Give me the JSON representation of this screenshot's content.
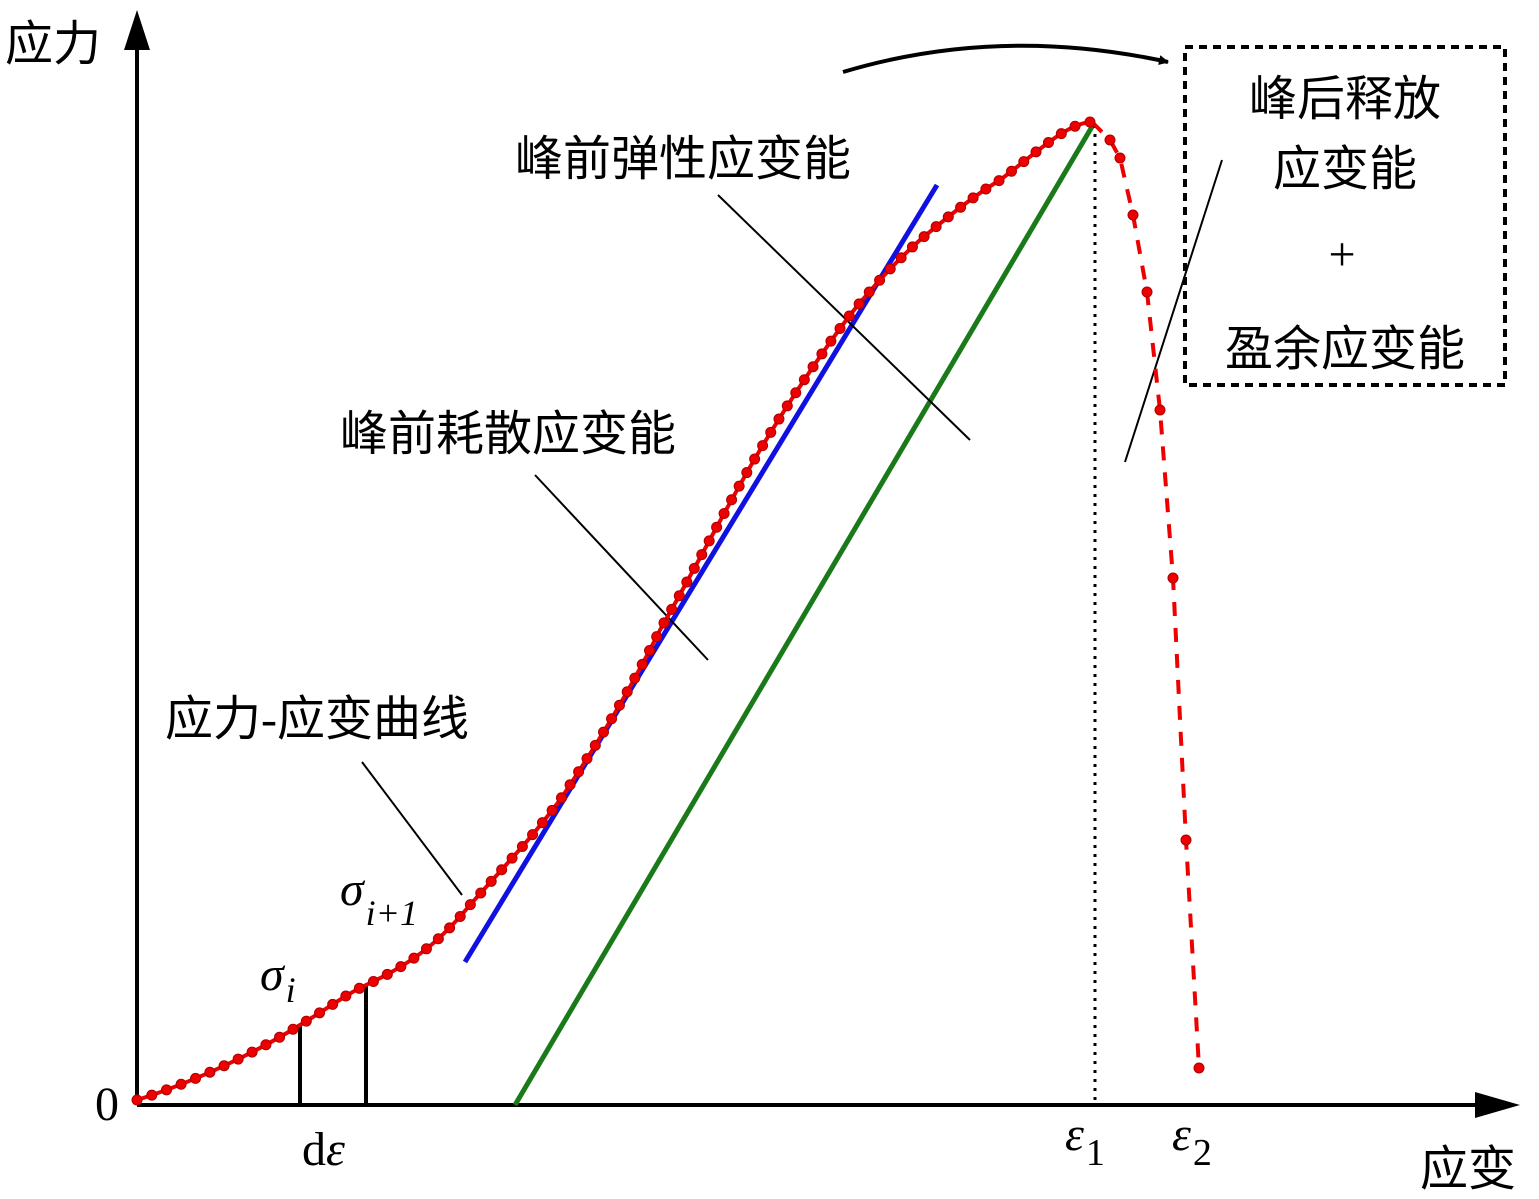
{
  "axes": {
    "y_label": "应力",
    "x_label": "应变",
    "origin": "0"
  },
  "labels": {
    "elastic": "峰前弹性应变能",
    "dissipated": "峰前耗散应变能",
    "curve": "应力-应变曲线"
  },
  "box": {
    "lines": [
      "峰后释放",
      "应变能",
      "+",
      "盈余应变能"
    ]
  },
  "symbols": {
    "sigma_i": {
      "base": "σ",
      "sub": "i"
    },
    "sigma_i1": {
      "base": "σ",
      "sub": "i+1"
    },
    "d_eps": {
      "prefix": "d",
      "base": "ε"
    },
    "eps1": {
      "base": "ε",
      "sub": "1"
    },
    "eps2": {
      "base": "ε",
      "sub": "2"
    }
  }
}
